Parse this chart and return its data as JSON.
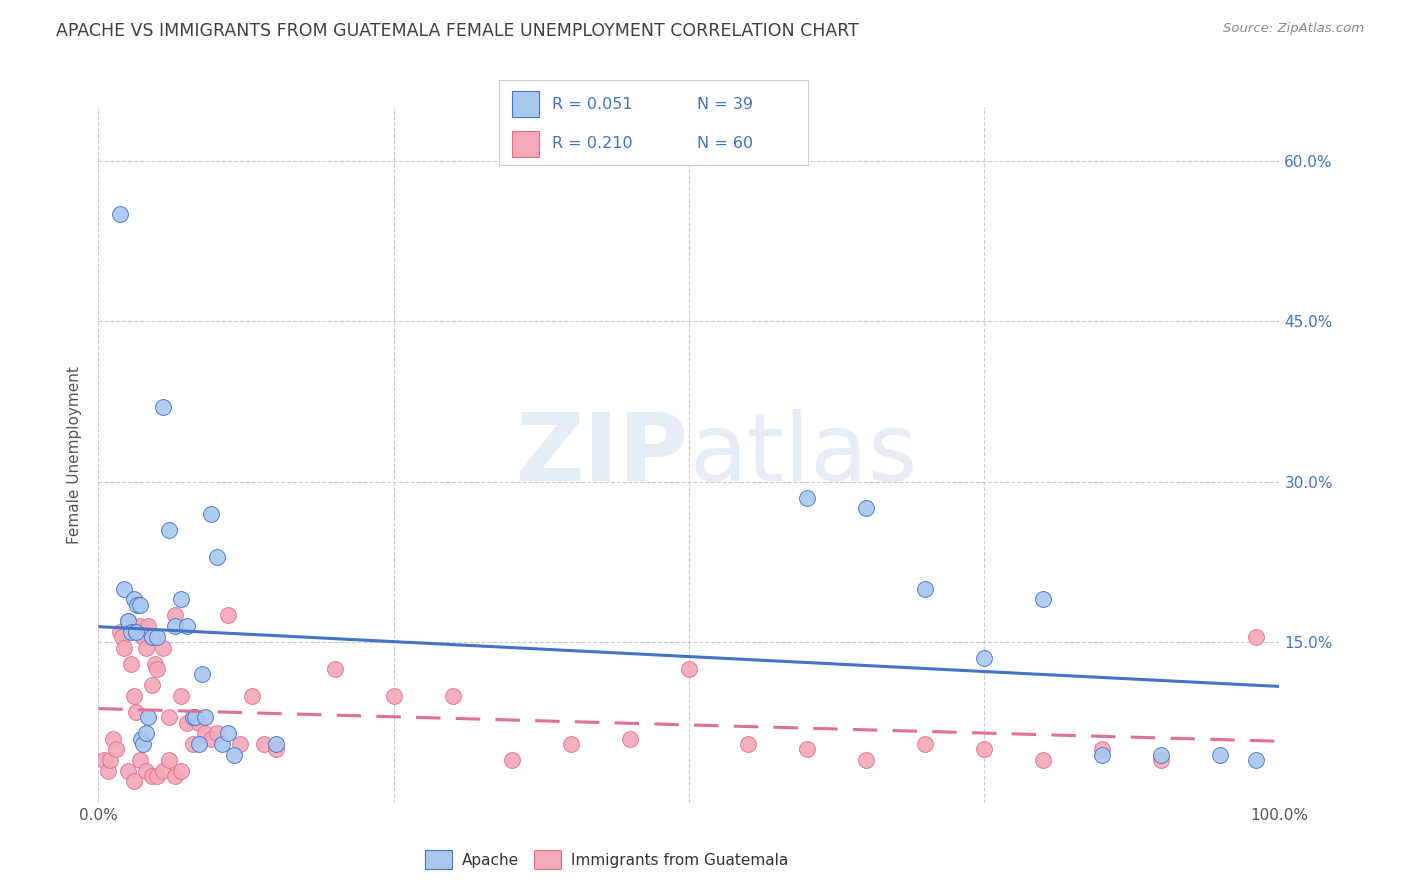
{
  "title": "APACHE VS IMMIGRANTS FROM GUATEMALA FEMALE UNEMPLOYMENT CORRELATION CHART",
  "source": "Source: ZipAtlas.com",
  "ylabel": "Female Unemployment",
  "xlim": [
    0,
    1.0
  ],
  "ylim": [
    0,
    0.65
  ],
  "legend_label1": "Apache",
  "legend_label2": "Immigrants from Guatemala",
  "R1": "0.051",
  "N1": "39",
  "R2": "0.210",
  "N2": "60",
  "color_blue": "#a8c8f0",
  "color_pink": "#f4a8b8",
  "color_blue_line": "#4472c4",
  "color_pink_line": "#e07090",
  "color_blue_text": "#4472c4",
  "color_title": "#404040",
  "background_color": "#ffffff",
  "apache_x": [
    0.018,
    0.022,
    0.025,
    0.028,
    0.03,
    0.032,
    0.033,
    0.035,
    0.036,
    0.038,
    0.04,
    0.042,
    0.045,
    0.05,
    0.055,
    0.06,
    0.065,
    0.07,
    0.075,
    0.08,
    0.082,
    0.085,
    0.088,
    0.09,
    0.095,
    0.1,
    0.105,
    0.11,
    0.115,
    0.15,
    0.6,
    0.65,
    0.7,
    0.75,
    0.8,
    0.85,
    0.9,
    0.95,
    0.98
  ],
  "apache_y": [
    0.55,
    0.2,
    0.17,
    0.16,
    0.19,
    0.16,
    0.185,
    0.185,
    0.06,
    0.055,
    0.065,
    0.08,
    0.155,
    0.155,
    0.37,
    0.255,
    0.165,
    0.19,
    0.165,
    0.08,
    0.08,
    0.055,
    0.12,
    0.08,
    0.27,
    0.23,
    0.055,
    0.065,
    0.045,
    0.055,
    0.285,
    0.275,
    0.2,
    0.135,
    0.19,
    0.045,
    0.045,
    0.045,
    0.04
  ],
  "guatemala_x": [
    0.005,
    0.008,
    0.01,
    0.012,
    0.015,
    0.018,
    0.02,
    0.022,
    0.025,
    0.028,
    0.03,
    0.032,
    0.035,
    0.038,
    0.04,
    0.042,
    0.045,
    0.048,
    0.05,
    0.055,
    0.06,
    0.065,
    0.07,
    0.075,
    0.08,
    0.085,
    0.09,
    0.095,
    0.1,
    0.11,
    0.12,
    0.13,
    0.14,
    0.15,
    0.2,
    0.25,
    0.3,
    0.35,
    0.4,
    0.45,
    0.5,
    0.55,
    0.6,
    0.65,
    0.7,
    0.75,
    0.8,
    0.85,
    0.9,
    0.98,
    0.025,
    0.03,
    0.035,
    0.04,
    0.045,
    0.05,
    0.055,
    0.06,
    0.065,
    0.07
  ],
  "guatemala_y": [
    0.04,
    0.03,
    0.04,
    0.06,
    0.05,
    0.16,
    0.155,
    0.145,
    0.17,
    0.13,
    0.1,
    0.085,
    0.165,
    0.155,
    0.145,
    0.165,
    0.11,
    0.13,
    0.125,
    0.145,
    0.08,
    0.175,
    0.1,
    0.075,
    0.055,
    0.075,
    0.065,
    0.06,
    0.065,
    0.175,
    0.055,
    0.1,
    0.055,
    0.05,
    0.125,
    0.1,
    0.1,
    0.04,
    0.055,
    0.06,
    0.125,
    0.055,
    0.05,
    0.04,
    0.055,
    0.05,
    0.04,
    0.05,
    0.04,
    0.155,
    0.03,
    0.02,
    0.04,
    0.03,
    0.025,
    0.025,
    0.03,
    0.04,
    0.025,
    0.03
  ]
}
